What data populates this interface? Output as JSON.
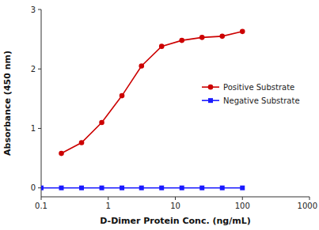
{
  "chart_data": {
    "type": "line",
    "xlabel": "D-Dimer Protein Conc. (ng/mL)",
    "ylabel": "Absorbance (450 nm)",
    "log": "x",
    "xlim": [
      0.1,
      1000
    ],
    "xticks": [
      0.1,
      1,
      10,
      100,
      1000
    ],
    "ylim": [
      -0.15,
      3.0
    ],
    "yticks": [
      0,
      1,
      2,
      3
    ],
    "grid": false,
    "legend": "center right",
    "series": [
      {
        "name": "Positive Substrate",
        "color": "#cc0000",
        "marker": "circle",
        "x": [
          0.2,
          0.4,
          0.8,
          1.6,
          3.13,
          6.25,
          12.5,
          25,
          50,
          100
        ],
        "values": [
          0.58,
          0.76,
          1.1,
          1.55,
          2.05,
          2.38,
          2.48,
          2.53,
          2.55,
          2.63
        ]
      },
      {
        "name": "Negative Substrate",
        "color": "#1a1aff",
        "marker": "square",
        "x": [
          0.1,
          0.2,
          0.4,
          0.8,
          1.6,
          3.13,
          6.25,
          12.5,
          25,
          50,
          100
        ],
        "values": [
          0.0,
          0.0,
          0.0,
          0.0,
          0.0,
          0.0,
          0.0,
          0.0,
          0.0,
          0.0,
          0.0
        ]
      }
    ]
  }
}
